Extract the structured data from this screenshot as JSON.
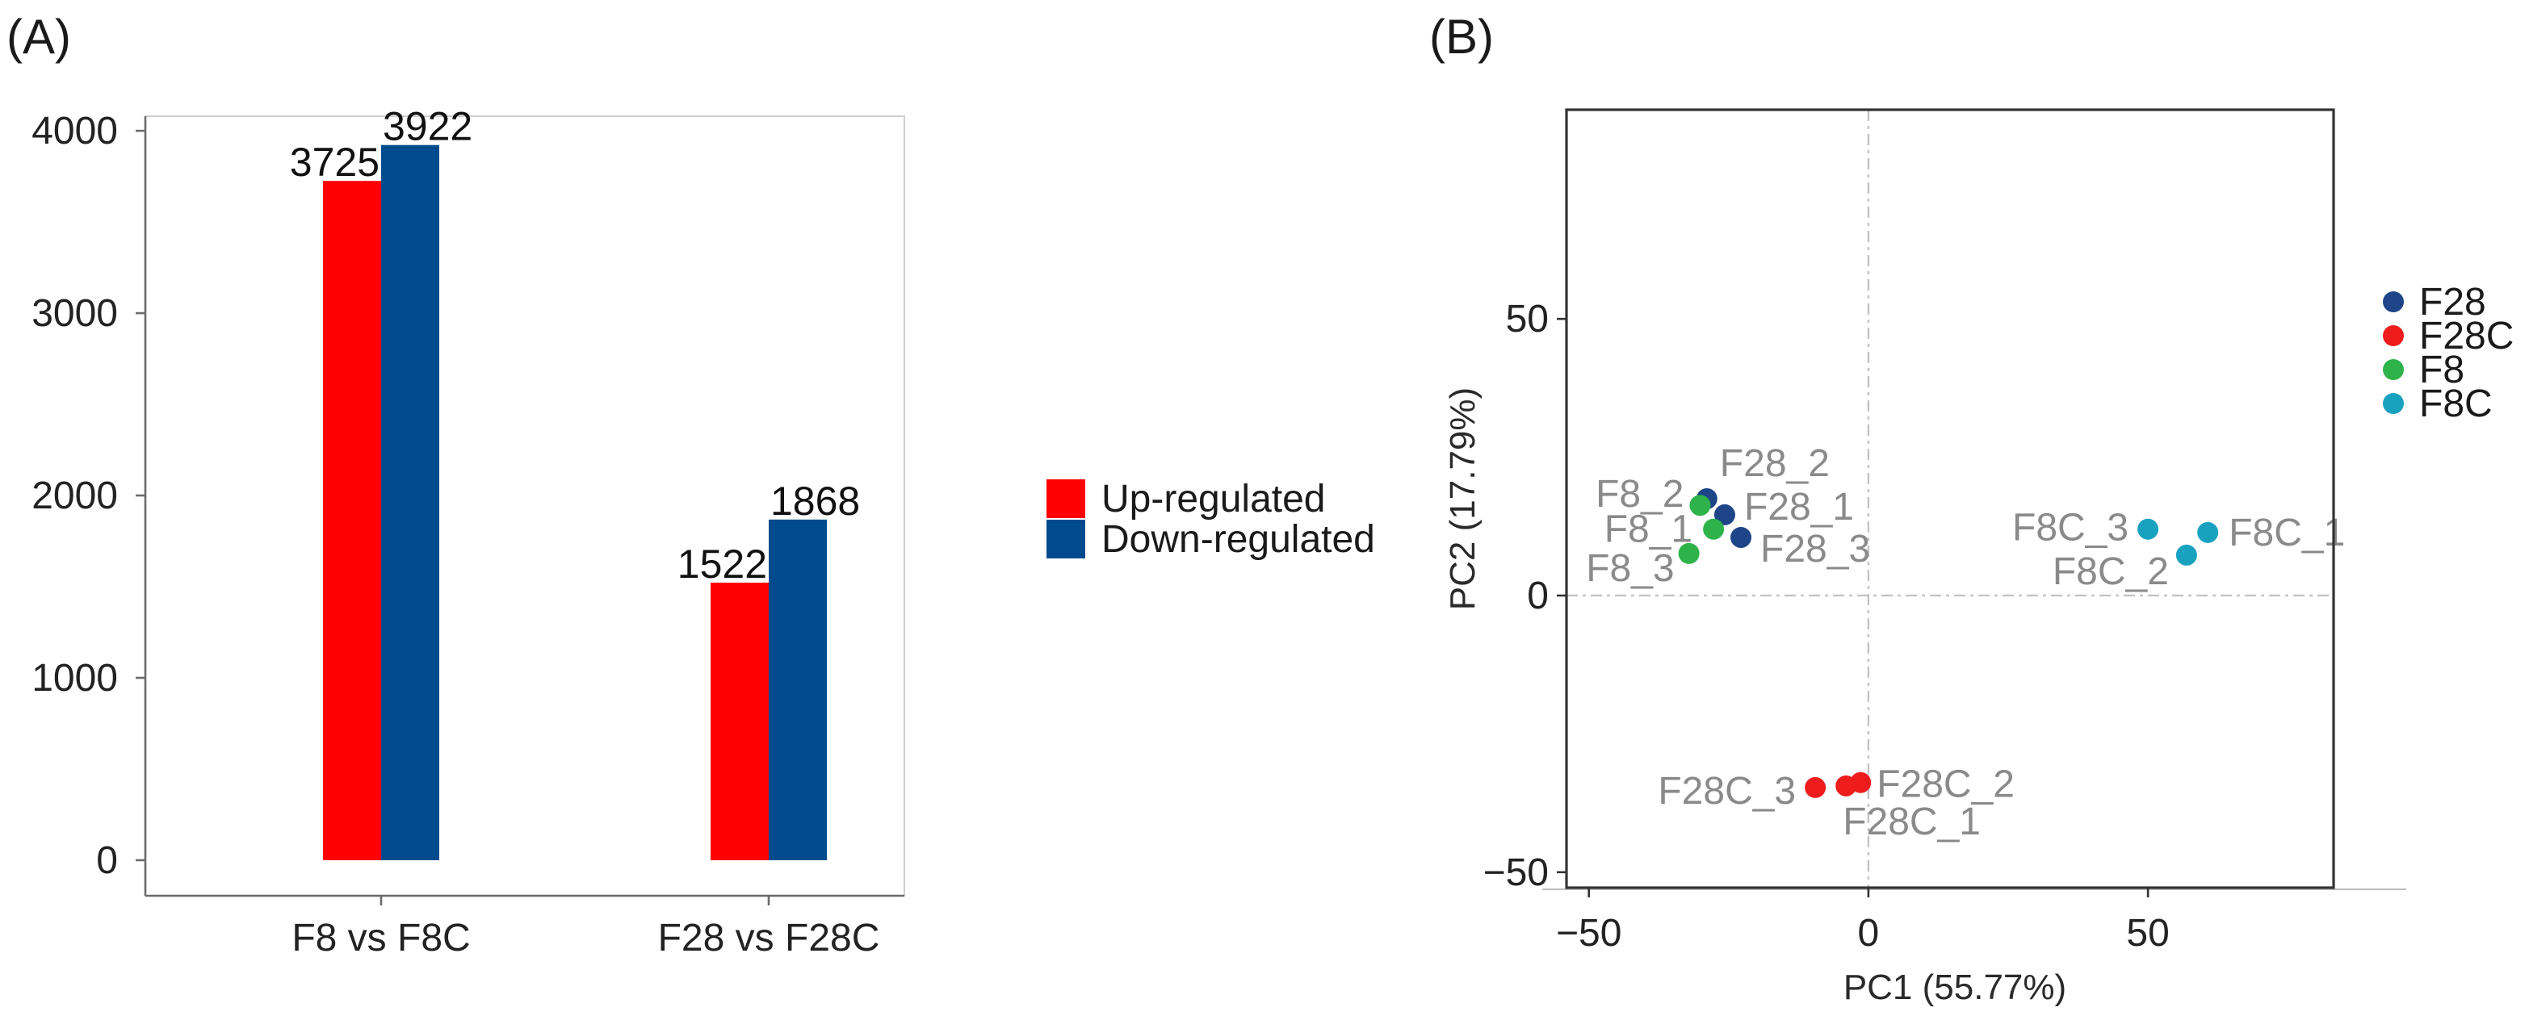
{
  "panels": {
    "a_label": "(A)",
    "b_label": "(B)"
  },
  "chart_data": [
    {
      "type": "bar",
      "categories": [
        "F8 vs F8C",
        "F28 vs F28C"
      ],
      "series": [
        {
          "name": "Up-regulated",
          "color": "#ff0000",
          "values": [
            3725,
            1522
          ]
        },
        {
          "name": "Down-regulated",
          "color": "#004b8d",
          "values": [
            3922,
            1868
          ]
        }
      ],
      "ylim": [
        -195,
        4080
      ],
      "yticks": [
        0,
        1000,
        2000,
        3000,
        4000
      ],
      "grid": false,
      "legend": "right"
    },
    {
      "type": "scatter",
      "xlabel": "PC1 (55.77%)",
      "ylabel": "PC2 (17.79%)",
      "xlim": [
        -54,
        83.2
      ],
      "ylim": [
        -52.8,
        87.8
      ],
      "xticks": [
        -50,
        0,
        50
      ],
      "xtick_labels": [
        "−50",
        "0",
        "50"
      ],
      "yticks": [
        -50,
        0,
        50
      ],
      "ytick_labels": [
        "−50",
        "0",
        "50"
      ],
      "reference_lines": {
        "x": 0,
        "y": 0
      },
      "grid": false,
      "legend": "right",
      "series": [
        {
          "name": "F28",
          "color": "#1d4587",
          "points": [
            {
              "label": "F28_1",
              "x": -25.7,
              "y": 14.6
            },
            {
              "label": "F28_2",
              "x": -28.9,
              "y": 17.5
            },
            {
              "label": "F28_3",
              "x": -22.8,
              "y": 10.5
            }
          ]
        },
        {
          "name": "F28C",
          "color": "#ee1c1c",
          "points": [
            {
              "label": "F28C_1",
              "x": -4.0,
              "y": -34.4
            },
            {
              "label": "F28C_2",
              "x": -1.4,
              "y": -33.8
            },
            {
              "label": "F28C_3",
              "x": -9.5,
              "y": -34.7
            }
          ]
        },
        {
          "name": "F8",
          "color": "#2db34a",
          "points": [
            {
              "label": "F8_1",
              "x": -27.7,
              "y": 12.0
            },
            {
              "label": "F8_2",
              "x": -30.1,
              "y": 16.3
            },
            {
              "label": "F8_3",
              "x": -32.1,
              "y": 7.6
            }
          ]
        },
        {
          "name": "F8C",
          "color": "#19a2c0",
          "points": [
            {
              "label": "F8C_1",
              "x": 60.7,
              "y": 11.4
            },
            {
              "label": "F8C_2",
              "x": 56.9,
              "y": 7.3
            },
            {
              "label": "F8C_3",
              "x": 50.0,
              "y": 12.0
            }
          ]
        }
      ]
    }
  ]
}
